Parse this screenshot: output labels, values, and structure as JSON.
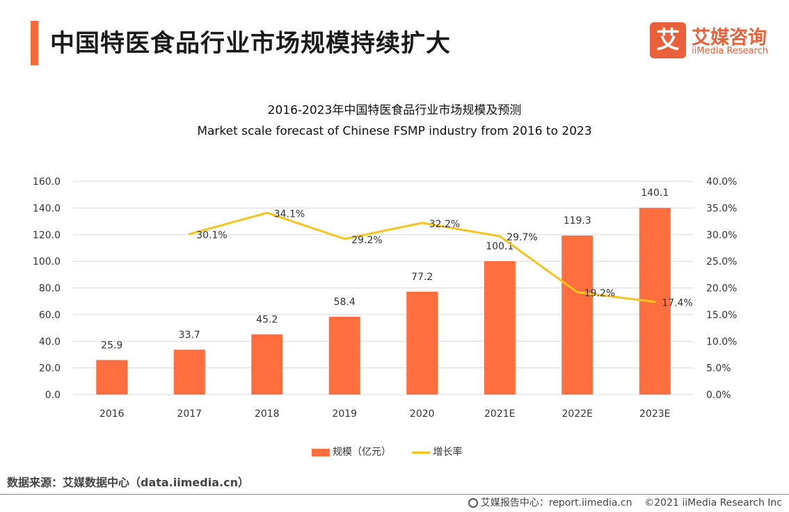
{
  "header": {
    "title": "中国特医食品行业市场规模持续扩大"
  },
  "logo": {
    "glyph": "艾",
    "cn": "艾媒咨询",
    "en": "iiMedia Research"
  },
  "chart_data": {
    "type": "bar",
    "title": "2016-2023年中国特医食品行业市场规模及预测",
    "subtitle": "Market scale forecast of Chinese FSMP industry from 2016 to 2023",
    "categories": [
      "2016",
      "2017",
      "2018",
      "2019",
      "2020",
      "2021E",
      "2022E",
      "2023E"
    ],
    "series": [
      {
        "name": "规模（亿元）",
        "type": "bar",
        "axis": "left",
        "values": [
          25.9,
          33.7,
          45.2,
          58.4,
          77.2,
          100.1,
          119.3,
          140.1
        ]
      },
      {
        "name": "增长率",
        "type": "line",
        "axis": "right",
        "values": [
          null,
          30.1,
          34.1,
          29.2,
          32.2,
          29.7,
          19.2,
          17.4
        ]
      }
    ],
    "left_axis": {
      "ylim": [
        0,
        160
      ],
      "ticks": [
        "0.0",
        "20.0",
        "40.0",
        "60.0",
        "80.0",
        "100.0",
        "120.0",
        "140.0",
        "160.0"
      ]
    },
    "right_axis": {
      "ylim": [
        0,
        40
      ],
      "ticks": [
        "0.0%",
        "5.0%",
        "10.0%",
        "15.0%",
        "20.0%",
        "25.0%",
        "30.0%",
        "35.0%",
        "40.0%"
      ]
    },
    "bar_labels": [
      "25.9",
      "33.7",
      "45.2",
      "58.4",
      "77.2",
      "100.1",
      "119.3",
      "140.1"
    ],
    "line_labels": [
      "",
      "30.1%",
      "34.1%",
      "29.2%",
      "32.2%",
      "29.7%",
      "19.2%",
      "17.4%"
    ],
    "grid": true,
    "legend_position": "bottom",
    "colors": {
      "bar": "#fe6e3e",
      "line": "#f7c41f",
      "grid": "#d9d9d9"
    }
  },
  "legend": {
    "bar_label": "规模（亿元）",
    "line_label": "增长率"
  },
  "source": "数据来源：艾媒数据中心（data.iimedia.cn）",
  "footer": {
    "report": "艾媒报告中心：report.iimedia.cn",
    "copyright": "©2021  iiMedia Research  Inc"
  }
}
